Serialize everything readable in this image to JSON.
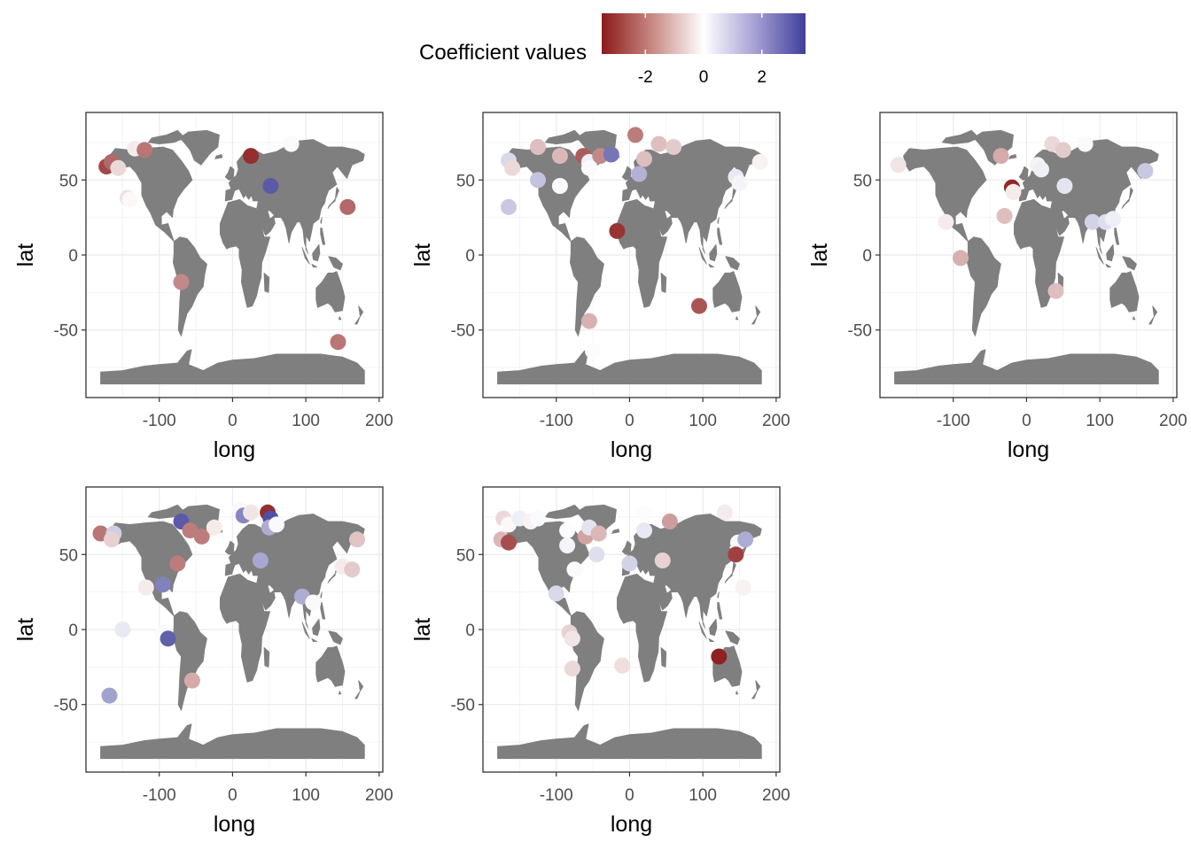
{
  "legend": {
    "title": "Coefficient values",
    "ticks": [
      {
        "value": -2,
        "label": "-2"
      },
      {
        "value": 0,
        "label": "0"
      },
      {
        "value": 2,
        "label": "2"
      }
    ],
    "range": [
      -3.5,
      3.5
    ],
    "colors": {
      "low": "#8b1a1a",
      "mid": "#ffffff",
      "high": "#3f3f9a"
    }
  },
  "colors": {
    "land": "#7f7f7f",
    "grid": "#ebebeb",
    "border": "#333333",
    "background": "#ffffff"
  },
  "chart_data": [
    {
      "type": "scatter",
      "xlabel": "long",
      "ylabel": "lat",
      "xlim": [
        -200,
        205
      ],
      "ylim": [
        -95,
        95
      ],
      "xticks": [
        {
          "v": -100,
          "label": "-100"
        },
        {
          "v": 0,
          "label": "0"
        },
        {
          "v": 100,
          "label": "100"
        },
        {
          "v": 200,
          "label": "200"
        }
      ],
      "yticks": [
        {
          "v": -50,
          "label": "-50"
        },
        {
          "v": 0,
          "label": "0"
        },
        {
          "v": 50,
          "label": "50"
        }
      ],
      "grid": true,
      "points": [
        {
          "x": -172,
          "y": 59,
          "value": -2.8
        },
        {
          "x": -165,
          "y": 62,
          "value": -2.3
        },
        {
          "x": -156,
          "y": 58,
          "value": -0.6
        },
        {
          "x": -133,
          "y": 71,
          "value": -0.3
        },
        {
          "x": -120,
          "y": 70,
          "value": -2.1
        },
        {
          "x": -143,
          "y": 38,
          "value": -0.5
        },
        {
          "x": -140,
          "y": 37,
          "value": -0.1
        },
        {
          "x": 25,
          "y": 66,
          "value": -3.2
        },
        {
          "x": 52,
          "y": 46,
          "value": 3.0
        },
        {
          "x": 80,
          "y": 74,
          "value": 0.1
        },
        {
          "x": 157,
          "y": 32,
          "value": -2.3
        },
        {
          "x": -70,
          "y": -18,
          "value": -1.8
        },
        {
          "x": 144,
          "y": -58,
          "value": -2.1
        }
      ]
    },
    {
      "type": "scatter",
      "xlabel": "long",
      "ylabel": "lat",
      "xlim": [
        -200,
        205
      ],
      "ylim": [
        -95,
        95
      ],
      "xticks": [
        {
          "v": -100,
          "label": "-100"
        },
        {
          "v": 0,
          "label": "0"
        },
        {
          "v": 100,
          "label": "100"
        },
        {
          "v": 200,
          "label": "200"
        }
      ],
      "yticks": [
        {
          "v": -50,
          "label": "-50"
        },
        {
          "v": 0,
          "label": "0"
        },
        {
          "v": 50,
          "label": "50"
        }
      ],
      "grid": true,
      "points": [
        {
          "x": -165,
          "y": 63,
          "value": 0.7
        },
        {
          "x": -160,
          "y": 58,
          "value": -0.6
        },
        {
          "x": -125,
          "y": 72,
          "value": -1.0
        },
        {
          "x": -125,
          "y": 50,
          "value": 1.1
        },
        {
          "x": -165,
          "y": 32,
          "value": 1.0
        },
        {
          "x": -95,
          "y": 66,
          "value": -1.1
        },
        {
          "x": -63,
          "y": 66,
          "value": -2.5
        },
        {
          "x": -55,
          "y": 62,
          "value": 0.3
        },
        {
          "x": -55,
          "y": 58,
          "value": 0.1
        },
        {
          "x": -40,
          "y": 66,
          "value": -1.8
        },
        {
          "x": -25,
          "y": 67,
          "value": 2.5
        },
        {
          "x": 8,
          "y": 80,
          "value": -2.0
        },
        {
          "x": 20,
          "y": 64,
          "value": -1.0
        },
        {
          "x": 40,
          "y": 74,
          "value": -1.0
        },
        {
          "x": 60,
          "y": 72,
          "value": -0.8
        },
        {
          "x": 13,
          "y": 54,
          "value": 1.4
        },
        {
          "x": -95,
          "y": 46,
          "value": 0.1
        },
        {
          "x": 145,
          "y": 52,
          "value": 0.4
        },
        {
          "x": 150,
          "y": 48,
          "value": 0.2
        },
        {
          "x": 178,
          "y": 62,
          "value": -0.2
        },
        {
          "x": -17,
          "y": 16,
          "value": -3.1
        },
        {
          "x": -55,
          "y": -44,
          "value": -1.2
        },
        {
          "x": -50,
          "y": -64,
          "value": 0.05
        },
        {
          "x": 95,
          "y": -34,
          "value": -2.6
        }
      ]
    },
    {
      "type": "scatter",
      "xlabel": "long",
      "ylabel": "lat",
      "xlim": [
        -200,
        205
      ],
      "ylim": [
        -95,
        95
      ],
      "xticks": [
        {
          "v": -100,
          "label": "-100"
        },
        {
          "v": 0,
          "label": "0"
        },
        {
          "v": 100,
          "label": "100"
        },
        {
          "v": 200,
          "label": "200"
        }
      ],
      "yticks": [
        {
          "v": -50,
          "label": "-50"
        },
        {
          "v": 0,
          "label": "0"
        },
        {
          "v": 50,
          "label": "50"
        }
      ],
      "grid": true,
      "points": [
        {
          "x": -175,
          "y": 60,
          "value": -0.4
        },
        {
          "x": -110,
          "y": 22,
          "value": -0.3
        },
        {
          "x": -90,
          "y": -2,
          "value": -1.2
        },
        {
          "x": -35,
          "y": 66,
          "value": -1.3
        },
        {
          "x": -30,
          "y": 26,
          "value": -1.0
        },
        {
          "x": -20,
          "y": 45,
          "value": -3.3
        },
        {
          "x": -18,
          "y": 42,
          "value": -0.3
        },
        {
          "x": 15,
          "y": 60,
          "value": -0.2
        },
        {
          "x": 20,
          "y": 57,
          "value": 0.3
        },
        {
          "x": 35,
          "y": 74,
          "value": -0.6
        },
        {
          "x": 50,
          "y": 70,
          "value": -0.8
        },
        {
          "x": 80,
          "y": 74,
          "value": 0.1
        },
        {
          "x": 52,
          "y": 46,
          "value": 0.5
        },
        {
          "x": 40,
          "y": -24,
          "value": -1.0
        },
        {
          "x": 90,
          "y": 22,
          "value": 0.8
        },
        {
          "x": 108,
          "y": 22,
          "value": 0.6
        },
        {
          "x": 118,
          "y": 24,
          "value": 0.3
        },
        {
          "x": 162,
          "y": 56,
          "value": 1.0
        }
      ]
    },
    {
      "type": "scatter",
      "xlabel": "long",
      "ylabel": "lat",
      "xlim": [
        -200,
        205
      ],
      "ylim": [
        -95,
        95
      ],
      "xticks": [
        {
          "v": -100,
          "label": "-100"
        },
        {
          "v": 0,
          "label": "0"
        },
        {
          "v": 100,
          "label": "100"
        },
        {
          "v": 200,
          "label": "200"
        }
      ],
      "yticks": [
        {
          "v": -50,
          "label": "-50"
        },
        {
          "v": 0,
          "label": "0"
        },
        {
          "v": 50,
          "label": "50"
        }
      ],
      "grid": true,
      "points": [
        {
          "x": -180,
          "y": 64,
          "value": -2.1
        },
        {
          "x": -162,
          "y": 64,
          "value": 0.9
        },
        {
          "x": -165,
          "y": 60,
          "value": -0.7
        },
        {
          "x": -118,
          "y": 28,
          "value": -0.3
        },
        {
          "x": -95,
          "y": 30,
          "value": 2.3
        },
        {
          "x": -150,
          "y": 0,
          "value": 0.4
        },
        {
          "x": -95,
          "y": -2,
          "value": 0.1
        },
        {
          "x": -88,
          "y": -6,
          "value": 2.9
        },
        {
          "x": -168,
          "y": -44,
          "value": 1.7
        },
        {
          "x": -75,
          "y": 44,
          "value": -2.0
        },
        {
          "x": -70,
          "y": 72,
          "value": 3.0
        },
        {
          "x": -58,
          "y": 66,
          "value": -2.0
        },
        {
          "x": -42,
          "y": 62,
          "value": -2.0
        },
        {
          "x": -25,
          "y": 68,
          "value": -0.3
        },
        {
          "x": 10,
          "y": 80,
          "value": 0.1
        },
        {
          "x": 15,
          "y": 76,
          "value": 2.2
        },
        {
          "x": 25,
          "y": 78,
          "value": -0.4
        },
        {
          "x": 48,
          "y": 78,
          "value": -3.2
        },
        {
          "x": 52,
          "y": 74,
          "value": 3.2
        },
        {
          "x": 50,
          "y": 68,
          "value": 1.5
        },
        {
          "x": 60,
          "y": 70,
          "value": 0.1
        },
        {
          "x": 38,
          "y": 46,
          "value": 1.6
        },
        {
          "x": 95,
          "y": 22,
          "value": 1.5
        },
        {
          "x": 110,
          "y": 18,
          "value": 0.1
        },
        {
          "x": 150,
          "y": 42,
          "value": -0.3
        },
        {
          "x": 163,
          "y": 40,
          "value": -0.8
        },
        {
          "x": 170,
          "y": 60,
          "value": -0.9
        },
        {
          "x": -55,
          "y": -34,
          "value": -1.3
        }
      ]
    },
    {
      "type": "scatter",
      "xlabel": "long",
      "ylabel": "lat",
      "xlim": [
        -200,
        205
      ],
      "ylim": [
        -95,
        95
      ],
      "xticks": [
        {
          "v": -100,
          "label": "-100"
        },
        {
          "v": 0,
          "label": "0"
        },
        {
          "v": 100,
          "label": "100"
        },
        {
          "v": 200,
          "label": "200"
        }
      ],
      "yticks": [
        {
          "v": -50,
          "label": "-50"
        },
        {
          "v": 0,
          "label": "0"
        },
        {
          "v": 50,
          "label": "50"
        }
      ],
      "grid": true,
      "points": [
        {
          "x": -172,
          "y": 74,
          "value": -0.6
        },
        {
          "x": -175,
          "y": 60,
          "value": -1.1
        },
        {
          "x": -165,
          "y": 58,
          "value": -2.7
        },
        {
          "x": -165,
          "y": 70,
          "value": -0.1
        },
        {
          "x": -150,
          "y": 74,
          "value": 0.3
        },
        {
          "x": -135,
          "y": 72,
          "value": -0.2
        },
        {
          "x": -125,
          "y": 74,
          "value": 0.1
        },
        {
          "x": -85,
          "y": 66,
          "value": 0.05
        },
        {
          "x": -85,
          "y": 56,
          "value": 0.2
        },
        {
          "x": -60,
          "y": 62,
          "value": -1.4
        },
        {
          "x": -55,
          "y": 68,
          "value": 0.5
        },
        {
          "x": -42,
          "y": 64,
          "value": -1.1
        },
        {
          "x": -45,
          "y": 50,
          "value": 0.6
        },
        {
          "x": -75,
          "y": 40,
          "value": 0.1
        },
        {
          "x": -100,
          "y": 24,
          "value": 0.7
        },
        {
          "x": -82,
          "y": -2,
          "value": -0.7
        },
        {
          "x": -78,
          "y": -6,
          "value": -0.4
        },
        {
          "x": -78,
          "y": -26,
          "value": -0.6
        },
        {
          "x": -10,
          "y": -24,
          "value": -0.5
        },
        {
          "x": 20,
          "y": 78,
          "value": 0.05
        },
        {
          "x": 20,
          "y": 66,
          "value": 0.4
        },
        {
          "x": 0,
          "y": 44,
          "value": 0.8
        },
        {
          "x": 45,
          "y": 46,
          "value": -0.7
        },
        {
          "x": 55,
          "y": 72,
          "value": -1.5
        },
        {
          "x": 130,
          "y": 78,
          "value": -0.3
        },
        {
          "x": 148,
          "y": 58,
          "value": 0.1
        },
        {
          "x": 158,
          "y": 60,
          "value": 1.5
        },
        {
          "x": 145,
          "y": 50,
          "value": -2.9
        },
        {
          "x": 155,
          "y": 28,
          "value": -0.2
        },
        {
          "x": 122,
          "y": -18,
          "value": -3.4
        }
      ]
    }
  ]
}
